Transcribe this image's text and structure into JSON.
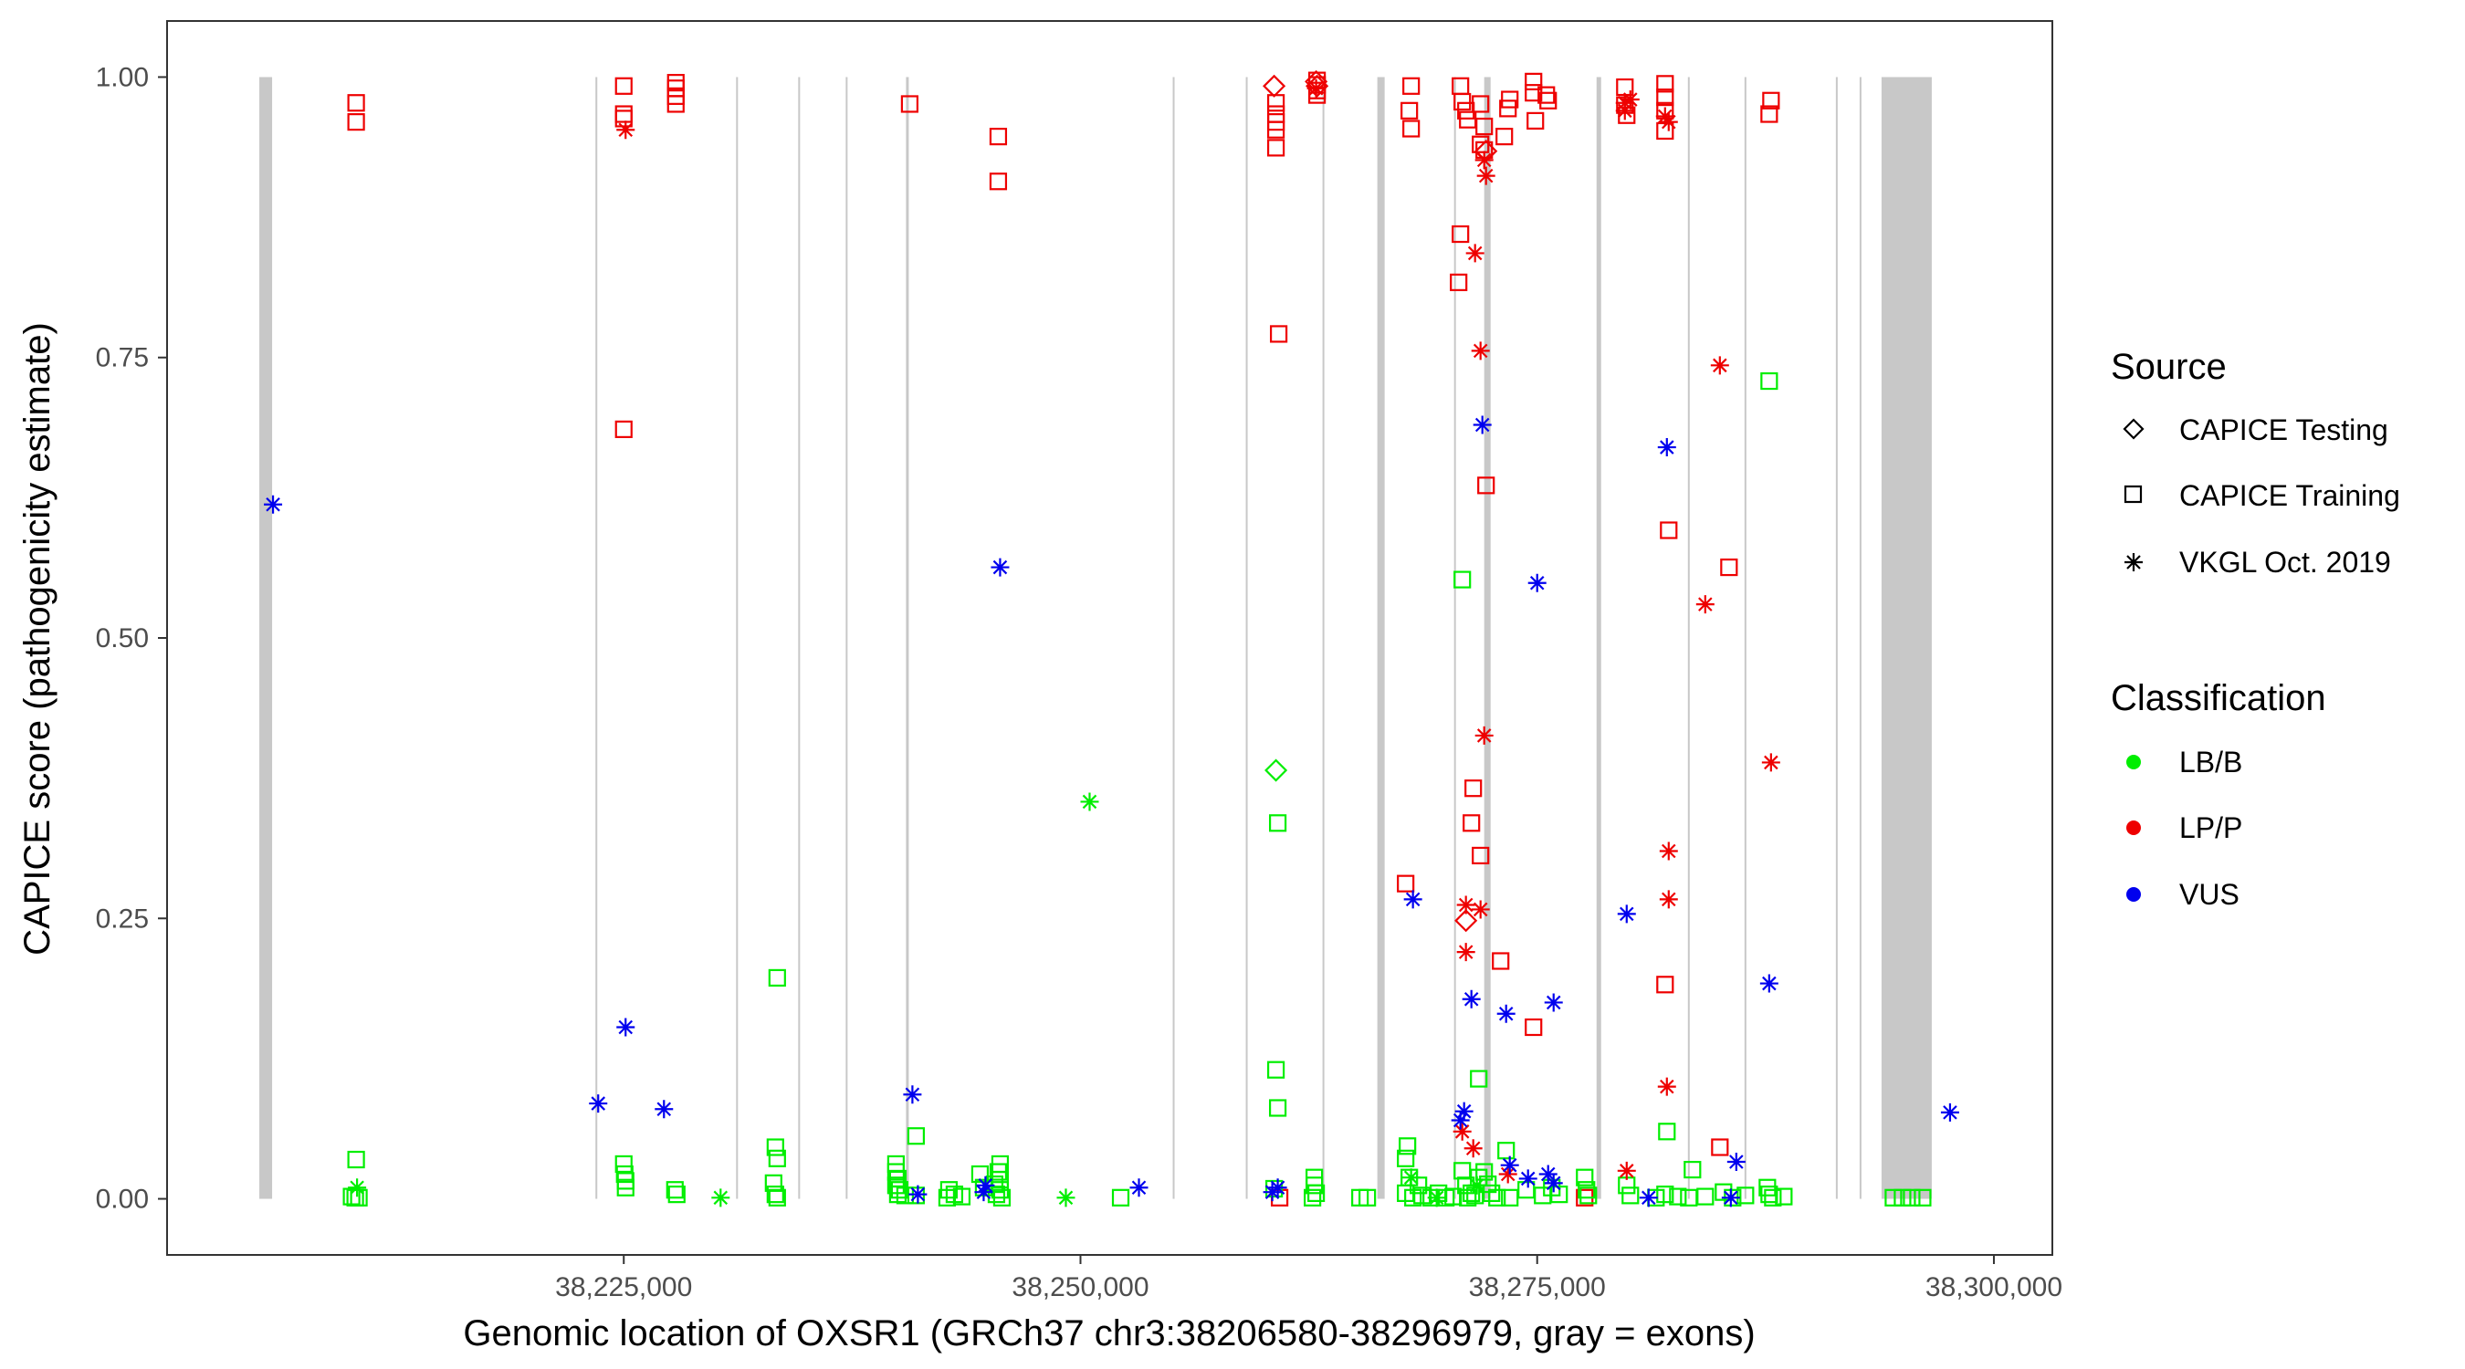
{
  "chart_data": {
    "type": "scatter",
    "title": "",
    "xlabel": "Genomic location of OXSR1 (GRCh37 chr3:38206580-38296979, gray = exons)",
    "ylabel": "CAPICE score (pathogenicity estimate)",
    "xlim": [
      38200000,
      38303200
    ],
    "ylim": [
      -0.05,
      1.05
    ],
    "x_ticks": [
      38225000,
      38250000,
      38275000,
      38300000
    ],
    "x_tick_labels": [
      "38,225,000",
      "38,250,000",
      "38,275,000",
      "38,300,000"
    ],
    "y_ticks": [
      0,
      0.25,
      0.5,
      0.75,
      1.0
    ],
    "y_tick_labels": [
      "0.00",
      "0.25",
      "0.50",
      "0.75",
      "1.00"
    ],
    "grid": false,
    "exons": [
      {
        "start": 38205050,
        "end": 38205750
      },
      {
        "start": 38223450,
        "end": 38223530
      },
      {
        "start": 38231150,
        "end": 38231230
      },
      {
        "start": 38234550,
        "end": 38234630
      },
      {
        "start": 38237150,
        "end": 38237230
      },
      {
        "start": 38240450,
        "end": 38240600
      },
      {
        "start": 38255050,
        "end": 38255130
      },
      {
        "start": 38259050,
        "end": 38259130
      },
      {
        "start": 38263250,
        "end": 38263330
      },
      {
        "start": 38266250,
        "end": 38266650
      },
      {
        "start": 38270450,
        "end": 38270530
      },
      {
        "start": 38272100,
        "end": 38272450
      },
      {
        "start": 38278250,
        "end": 38278500
      },
      {
        "start": 38283250,
        "end": 38283330
      },
      {
        "start": 38286350,
        "end": 38286430
      },
      {
        "start": 38291350,
        "end": 38291430
      },
      {
        "start": 38292650,
        "end": 38292730
      },
      {
        "start": 38293850,
        "end": 38296600
      }
    ],
    "legend": {
      "position": "right",
      "source_title": "Source",
      "source_items": [
        {
          "label": "CAPICE Testing",
          "shape": "diamond"
        },
        {
          "label": "CAPICE Training",
          "shape": "square"
        },
        {
          "label": "VKGL Oct. 2019",
          "shape": "asterisk"
        }
      ],
      "class_title": "Classification",
      "class_items": [
        {
          "label": "LB/B",
          "color": "#00ee00"
        },
        {
          "label": "LP/P",
          "color": "#ee0000"
        },
        {
          "label": "VUS",
          "color": "#0000ee"
        }
      ]
    },
    "colors": {
      "LB/B": "#00ee00",
      "LP/P": "#ee0000",
      "VUS": "#0000ee",
      "exon": "#c8c8c8"
    },
    "series": [
      {
        "name": "CAPICE Training / LP/P",
        "shape": "square",
        "class": "LP/P",
        "points": [
          [
            38210350,
            0.977
          ],
          [
            38210350,
            0.96
          ],
          [
            38225000,
            0.992
          ],
          [
            38225000,
            0.967
          ],
          [
            38225000,
            0.963
          ],
          [
            38225000,
            0.686
          ],
          [
            38227850,
            0.995
          ],
          [
            38227850,
            0.99
          ],
          [
            38227850,
            0.983
          ],
          [
            38227850,
            0.976
          ],
          [
            38240650,
            0.976
          ],
          [
            38245500,
            0.947
          ],
          [
            38245500,
            0.907
          ],
          [
            38260700,
            0.977
          ],
          [
            38260700,
            0.967
          ],
          [
            38260700,
            0.96
          ],
          [
            38260700,
            0.953
          ],
          [
            38260700,
            0.937
          ],
          [
            38260850,
            0.771
          ],
          [
            38260900,
            0.001
          ],
          [
            38262950,
            0.997
          ],
          [
            38262950,
            0.993
          ],
          [
            38262950,
            0.988
          ],
          [
            38262950,
            0.984
          ],
          [
            38268100,
            0.992
          ],
          [
            38268000,
            0.97
          ],
          [
            38268100,
            0.954
          ],
          [
            38270800,
            0.992
          ],
          [
            38270900,
            0.978
          ],
          [
            38271100,
            0.97
          ],
          [
            38271200,
            0.962
          ],
          [
            38271900,
            0.976
          ],
          [
            38272100,
            0.956
          ],
          [
            38271900,
            0.94
          ],
          [
            38273200,
            0.947
          ],
          [
            38273400,
            0.972
          ],
          [
            38273500,
            0.98
          ],
          [
            38274800,
            0.996
          ],
          [
            38274800,
            0.986
          ],
          [
            38274900,
            0.961
          ],
          [
            38275500,
            0.984
          ],
          [
            38275600,
            0.979
          ],
          [
            38272100,
            0.935
          ],
          [
            38270800,
            0.86
          ],
          [
            38270700,
            0.817
          ],
          [
            38272200,
            0.636
          ],
          [
            38271500,
            0.366
          ],
          [
            38271400,
            0.335
          ],
          [
            38271900,
            0.306
          ],
          [
            38267800,
            0.281
          ],
          [
            38273000,
            0.212
          ],
          [
            38274800,
            0.153
          ],
          [
            38279800,
            0.991
          ],
          [
            38279800,
            0.975
          ],
          [
            38279900,
            0.966
          ],
          [
            38282000,
            0.994
          ],
          [
            38282000,
            0.982
          ],
          [
            38282000,
            0.97
          ],
          [
            38282000,
            0.952
          ],
          [
            38282200,
            0.596
          ],
          [
            38282000,
            0.191
          ],
          [
            38285000,
            0.046
          ],
          [
            38285500,
            0.563
          ],
          [
            38287800,
            0.979
          ],
          [
            38287700,
            0.967
          ],
          [
            38277600,
            0.001
          ]
        ]
      },
      {
        "name": "CAPICE Training / LB/B",
        "shape": "square",
        "class": "LB/B",
        "points": [
          [
            38210350,
            0.035
          ],
          [
            38210100,
            0.002
          ],
          [
            38210300,
            0.001
          ],
          [
            38210500,
            0.001
          ],
          [
            38225000,
            0.031
          ],
          [
            38225050,
            0.022
          ],
          [
            38225100,
            0.016
          ],
          [
            38225100,
            0.01
          ],
          [
            38227800,
            0.008
          ],
          [
            38227900,
            0.004
          ],
          [
            38233400,
            0.197
          ],
          [
            38233300,
            0.046
          ],
          [
            38233400,
            0.036
          ],
          [
            38233200,
            0.014
          ],
          [
            38233300,
            0.004
          ],
          [
            38233400,
            0.001
          ],
          [
            38239900,
            0.031
          ],
          [
            38239900,
            0.024
          ],
          [
            38240000,
            0.018
          ],
          [
            38239900,
            0.012
          ],
          [
            38240100,
            0.008
          ],
          [
            38240000,
            0.004
          ],
          [
            38240400,
            0.003
          ],
          [
            38241000,
            0.056
          ],
          [
            38241000,
            0.003
          ],
          [
            38242800,
            0.008
          ],
          [
            38243100,
            0.004
          ],
          [
            38242700,
            0.001
          ],
          [
            38243500,
            0.002
          ],
          [
            38244500,
            0.022
          ],
          [
            38244700,
            0.01
          ],
          [
            38245600,
            0.031
          ],
          [
            38245500,
            0.024
          ],
          [
            38245600,
            0.017
          ],
          [
            38245300,
            0.013
          ],
          [
            38245600,
            0.008
          ],
          [
            38245400,
            0.004
          ],
          [
            38245700,
            0.001
          ],
          [
            38252200,
            0.001
          ],
          [
            38260800,
            0.335
          ],
          [
            38260700,
            0.115
          ],
          [
            38260800,
            0.081
          ],
          [
            38260600,
            0.009
          ],
          [
            38262800,
            0.019
          ],
          [
            38262800,
            0.012
          ],
          [
            38262900,
            0.005
          ],
          [
            38262700,
            0.001
          ],
          [
            38265300,
            0.001
          ],
          [
            38265700,
            0.001
          ],
          [
            38267900,
            0.047
          ],
          [
            38267800,
            0.036
          ],
          [
            38268000,
            0.019
          ],
          [
            38268500,
            0.012
          ],
          [
            38267800,
            0.005
          ],
          [
            38268200,
            0.001
          ],
          [
            38268700,
            0.003
          ],
          [
            38269200,
            0.001
          ],
          [
            38269600,
            0.005
          ],
          [
            38270000,
            0.001
          ],
          [
            38270400,
            0.002
          ],
          [
            38270900,
            0.552
          ],
          [
            38270900,
            0.025
          ],
          [
            38271100,
            0.012
          ],
          [
            38271400,
            0.005
          ],
          [
            38271200,
            0.001
          ],
          [
            38271600,
            0.003
          ],
          [
            38271800,
            0.107
          ],
          [
            38271800,
            0.019
          ],
          [
            38272100,
            0.024
          ],
          [
            38272300,
            0.013
          ],
          [
            38272500,
            0.005
          ],
          [
            38272800,
            0.001
          ],
          [
            38273300,
            0.043
          ],
          [
            38273500,
            0.001
          ],
          [
            38274400,
            0.008
          ],
          [
            38275300,
            0.003
          ],
          [
            38275800,
            0.01
          ],
          [
            38276200,
            0.004
          ],
          [
            38277600,
            0.019
          ],
          [
            38277700,
            0.008
          ],
          [
            38277800,
            0.003
          ],
          [
            38279900,
            0.012
          ],
          [
            38280100,
            0.003
          ],
          [
            38281500,
            0.001
          ],
          [
            38282100,
            0.06
          ],
          [
            38282000,
            0.004
          ],
          [
            38282700,
            0.002
          ],
          [
            38283300,
            0.001
          ],
          [
            38283500,
            0.026
          ],
          [
            38284200,
            0.002
          ],
          [
            38285200,
            0.006
          ],
          [
            38285700,
            0.001
          ],
          [
            38286400,
            0.003
          ],
          [
            38287700,
            0.729
          ],
          [
            38287600,
            0.01
          ],
          [
            38287700,
            0.004
          ],
          [
            38287900,
            0.001
          ],
          [
            38288500,
            0.002
          ],
          [
            38294500,
            0.001
          ],
          [
            38295000,
            0.001
          ],
          [
            38295500,
            0.001
          ],
          [
            38296100,
            0.001
          ]
        ]
      },
      {
        "name": "CAPICE Testing / LP/P",
        "shape": "diamond",
        "class": "LP/P",
        "points": [
          [
            38260600,
            0.992
          ],
          [
            38262900,
            0.996
          ],
          [
            38262950,
            0.992
          ],
          [
            38272200,
            0.934
          ],
          [
            38271100,
            0.248
          ]
        ]
      },
      {
        "name": "CAPICE Testing / LB/B",
        "shape": "diamond",
        "class": "LB/B",
        "points": [
          [
            38260700,
            0.382
          ]
        ]
      },
      {
        "name": "VKGL Oct. 2019 / LP/P",
        "shape": "asterisk",
        "class": "LP/P",
        "points": [
          [
            38225100,
            0.953
          ],
          [
            38262900,
            0.99
          ],
          [
            38271600,
            0.843
          ],
          [
            38271900,
            0.756
          ],
          [
            38272100,
            0.926
          ],
          [
            38272200,
            0.912
          ],
          [
            38272100,
            0.413
          ],
          [
            38271100,
            0.262
          ],
          [
            38271900,
            0.258
          ],
          [
            38271100,
            0.22
          ],
          [
            38270900,
            0.06
          ],
          [
            38271500,
            0.045
          ],
          [
            38273400,
            0.022
          ],
          [
            38280100,
            0.98
          ],
          [
            38279800,
            0.977
          ],
          [
            38279800,
            0.97
          ],
          [
            38279900,
            0.025
          ],
          [
            38282000,
            0.965
          ],
          [
            38282200,
            0.96
          ],
          [
            38282200,
            0.31
          ],
          [
            38282200,
            0.267
          ],
          [
            38282100,
            0.1
          ],
          [
            38285000,
            0.743
          ],
          [
            38284200,
            0.53
          ],
          [
            38287800,
            0.389
          ]
        ]
      },
      {
        "name": "VKGL Oct. 2019 / LB/B",
        "shape": "asterisk",
        "class": "LB/B",
        "points": [
          [
            38210400,
            0.01
          ],
          [
            38230300,
            0.001
          ],
          [
            38250500,
            0.354
          ],
          [
            38249200,
            0.001
          ],
          [
            38268100,
            0.019
          ],
          [
            38269500,
            0.001
          ],
          [
            38271700,
            0.012
          ]
        ]
      },
      {
        "name": "VKGL Oct. 2019 / VUS",
        "shape": "asterisk",
        "class": "VUS",
        "points": [
          [
            38205800,
            0.619
          ],
          [
            38223600,
            0.085
          ],
          [
            38225100,
            0.153
          ],
          [
            38227200,
            0.08
          ],
          [
            38240800,
            0.093
          ],
          [
            38241100,
            0.004
          ],
          [
            38244800,
            0.012
          ],
          [
            38245600,
            0.563
          ],
          [
            38244700,
            0.006
          ],
          [
            38253200,
            0.01
          ],
          [
            38260500,
            0.006
          ],
          [
            38260800,
            0.01
          ],
          [
            38268200,
            0.267
          ],
          [
            38271000,
            0.078
          ],
          [
            38270800,
            0.07
          ],
          [
            38271400,
            0.178
          ],
          [
            38272000,
            0.69
          ],
          [
            38273300,
            0.165
          ],
          [
            38273500,
            0.03
          ],
          [
            38274500,
            0.018
          ],
          [
            38275000,
            0.549
          ],
          [
            38275900,
            0.175
          ],
          [
            38275600,
            0.022
          ],
          [
            38275900,
            0.014
          ],
          [
            38279900,
            0.254
          ],
          [
            38281100,
            0.001
          ],
          [
            38282100,
            0.67
          ],
          [
            38285600,
            0.001
          ],
          [
            38285900,
            0.033
          ],
          [
            38287700,
            0.192
          ],
          [
            38297600,
            0.077
          ]
        ]
      }
    ]
  }
}
